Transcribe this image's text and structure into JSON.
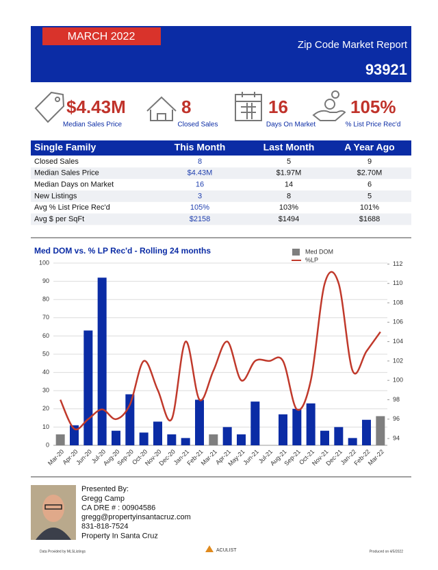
{
  "header": {
    "month": "MARCH 2022",
    "title": "Zip Code Market Report",
    "zip": "93921"
  },
  "stats": [
    {
      "value": "$4.43M",
      "label": "Median Sales Price"
    },
    {
      "value": "8",
      "label": "Closed Sales"
    },
    {
      "value": "16",
      "label": "Days On Market"
    },
    {
      "value": "105%",
      "label": "% List Price Rec'd"
    }
  ],
  "table": {
    "columns": [
      "Single Family",
      "This Month",
      "Last Month",
      "A Year Ago"
    ],
    "rows": [
      [
        "Closed Sales",
        "8",
        "5",
        "9"
      ],
      [
        "Median Sales Price",
        "$4.43M",
        "$1.97M",
        "$2.70M"
      ],
      [
        "Median Days on Market",
        "16",
        "14",
        "6"
      ],
      [
        "New Listings",
        "3",
        "8",
        "5"
      ],
      [
        "Avg % List Price Rec'd",
        "105%",
        "103%",
        "101%"
      ],
      [
        "Avg $ per SqFt",
        "$2158",
        "$1494",
        "$1688"
      ]
    ]
  },
  "chart_data": {
    "type": "bar",
    "title": "Med DOM vs. % LP Rec'd - Rolling 24 months",
    "categories": [
      "Mar-20",
      "Apr-20",
      "Jun-20",
      "Jul-20",
      "Aug-20",
      "Sep-20",
      "Oct-20",
      "Nov-20",
      "Dec-20",
      "Jan-21",
      "Feb-21",
      "Mar-21",
      "Apr-21",
      "May-21",
      "Jun-21",
      "Jul-21",
      "Aug-21",
      "Sep-21",
      "Oct-21",
      "Nov-21",
      "Dec-21",
      "Jan-22",
      "Feb-22",
      "Mar-22"
    ],
    "series": [
      {
        "name": "Med DOM",
        "type": "bar",
        "color": "#7f7f7f",
        "colors": [
          "#7f7f7f",
          "#0b2ca5",
          "#0b2ca5",
          "#0b2ca5",
          "#0b2ca5",
          "#0b2ca5",
          "#0b2ca5",
          "#0b2ca5",
          "#0b2ca5",
          "#0b2ca5",
          "#0b2ca5",
          "#7f7f7f",
          "#0b2ca5",
          "#0b2ca5",
          "#0b2ca5",
          "#0b2ca5",
          "#0b2ca5",
          "#0b2ca5",
          "#0b2ca5",
          "#0b2ca5",
          "#0b2ca5",
          "#0b2ca5",
          "#0b2ca5",
          "#7f7f7f"
        ],
        "values": [
          6,
          11,
          63,
          92,
          8,
          28,
          7,
          13,
          6,
          4,
          25,
          6,
          10,
          6,
          24,
          null,
          17,
          20,
          23,
          8,
          10,
          4,
          14,
          16
        ]
      },
      {
        "name": "%LP",
        "type": "line",
        "axis": "y2",
        "color": "#c0392b",
        "values": [
          98,
          95,
          96,
          97,
          96,
          97.5,
          102,
          99,
          96,
          104,
          98,
          101,
          104,
          100,
          102,
          102,
          102,
          97,
          100,
          110,
          110,
          101,
          103,
          105
        ]
      }
    ],
    "ylim": [
      0,
      100
    ],
    "yticks": [
      0,
      10,
      20,
      30,
      40,
      50,
      60,
      70,
      80,
      90,
      100
    ],
    "y2lim": [
      93.3,
      112.1
    ],
    "y2ticks": [
      94,
      96,
      98,
      100,
      102,
      104,
      106,
      108,
      110,
      112
    ],
    "grid": true
  },
  "agent": {
    "heading": "Presented By:",
    "lines": [
      "Gregg Camp",
      "CA DRE # : 00904586",
      "gregg@propertyinsantacruz.com",
      "831-818-7524",
      "Property In Santa Cruz"
    ]
  },
  "footer": {
    "source": "Data Provided by MLSListings",
    "brand": "ACULIST",
    "produced": "Produced on 4/5/2022"
  }
}
